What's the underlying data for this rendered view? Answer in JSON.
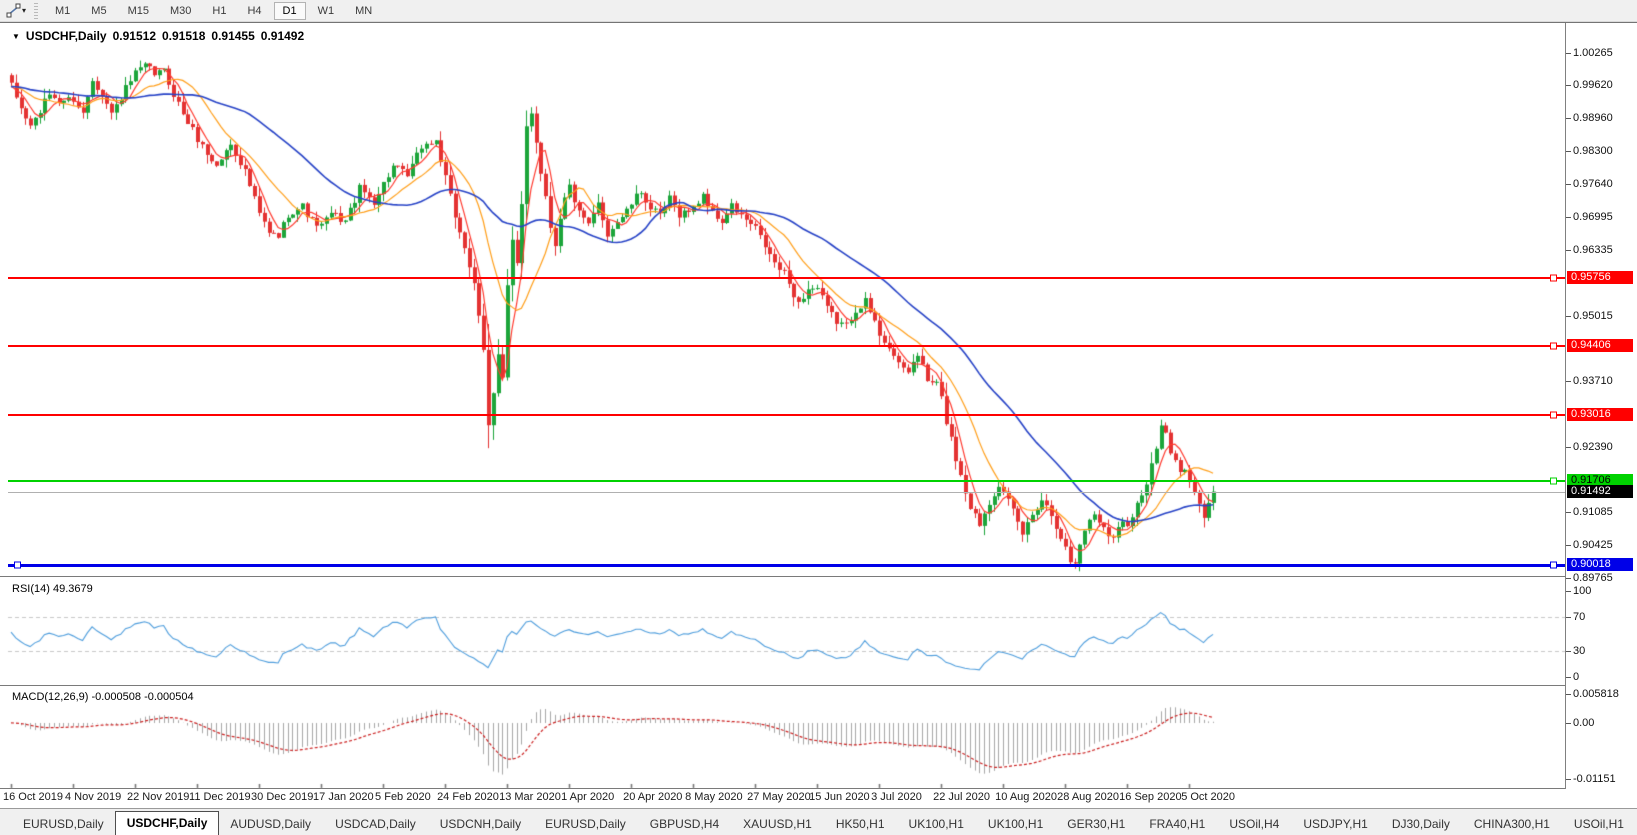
{
  "toolbar": {
    "timeframes": [
      "M1",
      "M5",
      "M15",
      "M30",
      "H1",
      "H4",
      "D1",
      "W1",
      "MN"
    ],
    "active": "D1",
    "tool_icon": "line-tool-icon",
    "caret": "▾"
  },
  "chart": {
    "title": {
      "expander": "▼",
      "symbol": "USDCHF,Daily",
      "open": "0.91512",
      "high": "0.91518",
      "low": "0.91455",
      "close": "0.91492"
    }
  },
  "chart_data": {
    "type": "candlestick",
    "symbol": "USDCHF",
    "timeframe": "Daily",
    "ohlc_display": {
      "open": 0.91512,
      "high": 0.91518,
      "low": 0.91455,
      "close": 0.91492
    },
    "candles_count": 253,
    "price_path": [
      [
        0,
        0.996
      ],
      [
        2,
        0.9915
      ],
      [
        4,
        0.988
      ],
      [
        6,
        0.991
      ],
      [
        8,
        0.9945
      ],
      [
        10,
        0.993
      ],
      [
        13,
        0.9935
      ],
      [
        15,
        0.9905
      ],
      [
        17,
        0.9975
      ],
      [
        19,
        0.9945
      ],
      [
        21,
        0.9905
      ],
      [
        24,
        0.9955
      ],
      [
        26,
        0.9985
      ],
      [
        28,
        1.0
      ],
      [
        30,
        0.9985
      ],
      [
        32,
        0.999
      ],
      [
        34,
        0.9945
      ],
      [
        36,
        0.9905
      ],
      [
        39,
        0.9855
      ],
      [
        41,
        0.9825
      ],
      [
        43,
        0.98
      ],
      [
        46,
        0.9845
      ],
      [
        49,
        0.979
      ],
      [
        52,
        0.9705
      ],
      [
        54,
        0.9665
      ],
      [
        56,
        0.966
      ],
      [
        58,
        0.9705
      ],
      [
        61,
        0.972
      ],
      [
        63,
        0.969
      ],
      [
        65,
        0.968
      ],
      [
        67,
        0.9705
      ],
      [
        70,
        0.969
      ],
      [
        73,
        0.9755
      ],
      [
        76,
        0.973
      ],
      [
        78,
        0.9765
      ],
      [
        80,
        0.98
      ],
      [
        83,
        0.978
      ],
      [
        86,
        0.984
      ],
      [
        89,
        0.985
      ],
      [
        91,
        0.9775
      ],
      [
        93,
        0.97
      ],
      [
        95,
        0.964
      ],
      [
        97,
        0.956
      ],
      [
        99,
        0.943
      ],
      [
        100,
        0.928
      ],
      [
        101,
        0.935
      ],
      [
        102,
        0.943
      ],
      [
        103,
        0.938
      ],
      [
        104,
        0.956
      ],
      [
        105,
        0.965
      ],
      [
        106,
        0.96
      ],
      [
        107,
        0.972
      ],
      [
        108,
        0.988
      ],
      [
        109,
        0.991
      ],
      [
        110,
        0.985
      ],
      [
        111,
        0.979
      ],
      [
        112,
        0.974
      ],
      [
        113,
        0.968
      ],
      [
        114,
        0.9645
      ],
      [
        115,
        0.97
      ],
      [
        116,
        0.9735
      ],
      [
        117,
        0.976
      ],
      [
        119,
        0.9705
      ],
      [
        121,
        0.968
      ],
      [
        123,
        0.9725
      ],
      [
        125,
        0.9665
      ],
      [
        127,
        0.969
      ],
      [
        129,
        0.971
      ],
      [
        130,
        0.9725
      ],
      [
        132,
        0.975
      ],
      [
        134,
        0.9715
      ],
      [
        136,
        0.97
      ],
      [
        138,
        0.9735
      ],
      [
        140,
        0.9705
      ],
      [
        143,
        0.9715
      ],
      [
        145,
        0.9745
      ],
      [
        147,
        0.9705
      ],
      [
        149,
        0.969
      ],
      [
        151,
        0.972
      ],
      [
        153,
        0.97
      ],
      [
        156,
        0.9675
      ],
      [
        158,
        0.964
      ],
      [
        160,
        0.9605
      ],
      [
        162,
        0.9585
      ],
      [
        165,
        0.9525
      ],
      [
        167,
        0.9555
      ],
      [
        169,
        0.9555
      ],
      [
        171,
        0.9515
      ],
      [
        173,
        0.949
      ],
      [
        175,
        0.948
      ],
      [
        177,
        0.9515
      ],
      [
        179,
        0.953
      ],
      [
        182,
        0.9465
      ],
      [
        184,
        0.944
      ],
      [
        186,
        0.94
      ],
      [
        188,
        0.939
      ],
      [
        190,
        0.9425
      ],
      [
        192,
        0.937
      ],
      [
        194,
        0.9365
      ],
      [
        195,
        0.9335
      ],
      [
        196,
        0.929
      ],
      [
        197,
        0.9255
      ],
      [
        198,
        0.9215
      ],
      [
        199,
        0.9185
      ],
      [
        200,
        0.915
      ],
      [
        201,
        0.912
      ],
      [
        203,
        0.9085
      ],
      [
        205,
        0.913
      ],
      [
        207,
        0.9165
      ],
      [
        208,
        0.9145
      ],
      [
        210,
        0.911
      ],
      [
        212,
        0.9065
      ],
      [
        214,
        0.9105
      ],
      [
        216,
        0.9135
      ],
      [
        218,
        0.9105
      ],
      [
        220,
        0.906
      ],
      [
        221,
        0.9035
      ],
      [
        222,
        0.901
      ],
      [
        223,
        0.9005
      ],
      [
        224,
        0.9045
      ],
      [
        225,
        0.9075
      ],
      [
        227,
        0.9105
      ],
      [
        229,
        0.908
      ],
      [
        231,
        0.9055
      ],
      [
        233,
        0.9095
      ],
      [
        234,
        0.9085
      ],
      [
        236,
        0.9125
      ],
      [
        238,
        0.9165
      ],
      [
        240,
        0.9235
      ],
      [
        241,
        0.928
      ],
      [
        242,
        0.926
      ],
      [
        243,
        0.9225
      ],
      [
        244,
        0.922
      ],
      [
        245,
        0.9195
      ],
      [
        246,
        0.919
      ],
      [
        247,
        0.917
      ],
      [
        248,
        0.9145
      ],
      [
        249,
        0.912
      ],
      [
        250,
        0.9095
      ],
      [
        251,
        0.913
      ],
      [
        252,
        0.91492
      ]
    ],
    "y_ticks": [
      "1.00265",
      "0.99620",
      "0.98960",
      "0.98300",
      "0.97640",
      "0.96995",
      "0.96335",
      "0.95015",
      "0.93710",
      "0.92390",
      "0.91085",
      "0.90425",
      "0.89765"
    ],
    "y_top_tick": 1.00265,
    "hlines": [
      {
        "price": "0.95756",
        "value": 0.95756,
        "color": "#ff0000",
        "text_color": "#ffffff",
        "thickness": 2,
        "kind": "resistance"
      },
      {
        "price": "0.94406",
        "value": 0.94406,
        "color": "#ff0000",
        "text_color": "#ffffff",
        "thickness": 2,
        "kind": "resistance"
      },
      {
        "price": "0.93016",
        "value": 0.93016,
        "color": "#ff0000",
        "text_color": "#ffffff",
        "thickness": 2,
        "kind": "resistance"
      },
      {
        "price": "0.91706",
        "value": 0.91706,
        "color": "#00d200",
        "text_color": "#000000",
        "thickness": 2,
        "kind": "support"
      },
      {
        "price": "0.90018",
        "value": 0.90018,
        "color": "#0000e8",
        "text_color": "#ffffff",
        "thickness": 3,
        "kind": "support",
        "left_handle": true
      }
    ],
    "current_price": "0.91492",
    "current_price_value": 0.91492,
    "x_labels": [
      "16 Oct 2019",
      "4 Nov 2019",
      "22 Nov 2019",
      "11 Dec 2019",
      "30 Dec 2019",
      "17 Jan 2020",
      "5 Feb 2020",
      "24 Feb 2020",
      "13 Mar 2020",
      "1 Apr 2020",
      "20 Apr 2020",
      "8 May 2020",
      "27 May 2020",
      "15 Jun 2020",
      "3 Jul 2020",
      "22 Jul 2020",
      "10 Aug 2020",
      "28 Aug 2020",
      "16 Sep 2020",
      "5 Oct 2020"
    ],
    "candle_up_color": "#1ca53a",
    "candle_down_color": "#e43232",
    "ma_lines": [
      {
        "name": "fast-ma",
        "period": 5,
        "color": "#ff3b30"
      },
      {
        "name": "medium-ma",
        "period": 13,
        "color": "#ff9f1a"
      },
      {
        "name": "slow-ma",
        "period": 34,
        "color": "#2743c7"
      }
    ],
    "rsi": {
      "label": "RSI(14) 49.3679",
      "period": 14,
      "value": 49.3679,
      "ticks": [
        "100",
        "70",
        "30",
        "0"
      ],
      "levels": [
        70,
        30
      ],
      "range": [
        0,
        100
      ],
      "line_color": "#4f9edd"
    },
    "macd": {
      "label": "MACD(12,26,9) -0.000508 -0.000504",
      "params": [
        12,
        26,
        9
      ],
      "macd_value": -0.000508,
      "signal_value": -0.000504,
      "ticks": [
        "0.005818",
        "0.00",
        "-0.01151"
      ],
      "axis_max": 0.005818,
      "axis_min": -0.01151,
      "histogram_color": "#a8a8a8",
      "signal_color": "#cc2222"
    }
  },
  "tabs": {
    "items": [
      "EURUSD,Daily",
      "USDCHF,Daily",
      "AUDUSD,Daily",
      "USDCAD,Daily",
      "USDCNH,Daily",
      "EURUSD,Daily",
      "GBPUSD,H4",
      "XAUUSD,H1",
      "HK50,H1",
      "UK100,H1",
      "UK100,H1",
      "GER30,H1",
      "FRA40,H1",
      "USOil,H4",
      "USDJPY,H1",
      "DJ30,Daily",
      "CHINA300,H1",
      "USOil,H1"
    ],
    "active_index": 1,
    "scroll_left": "◂",
    "scroll_right": "▸"
  }
}
